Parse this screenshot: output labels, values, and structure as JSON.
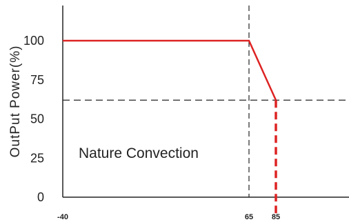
{
  "chart_data": {
    "type": "line",
    "ylabel": "OutPut Power(%)",
    "xlabel": "",
    "yticks": [
      0,
      25,
      50,
      75,
      100
    ],
    "xticks": [
      -40,
      65,
      85
    ],
    "xlim": [
      -40,
      85
    ],
    "ylim": [
      0,
      110
    ],
    "series": [
      {
        "x": [
          -40,
          65,
          85
        ],
        "y": [
          100,
          100,
          62
        ],
        "color": "#dd2222"
      }
    ],
    "cutoff": {
      "x": 85,
      "y_from": 62,
      "y_to": 0,
      "style": "dashed",
      "color": "#dd2222"
    },
    "reference_lines": [
      {
        "orientation": "vertical",
        "x": 65,
        "style": "dashed",
        "color": "#222222"
      },
      {
        "orientation": "horizontal",
        "y": 62,
        "style": "dashed",
        "color": "#222222"
      }
    ],
    "annotation": "Nature Convection"
  }
}
